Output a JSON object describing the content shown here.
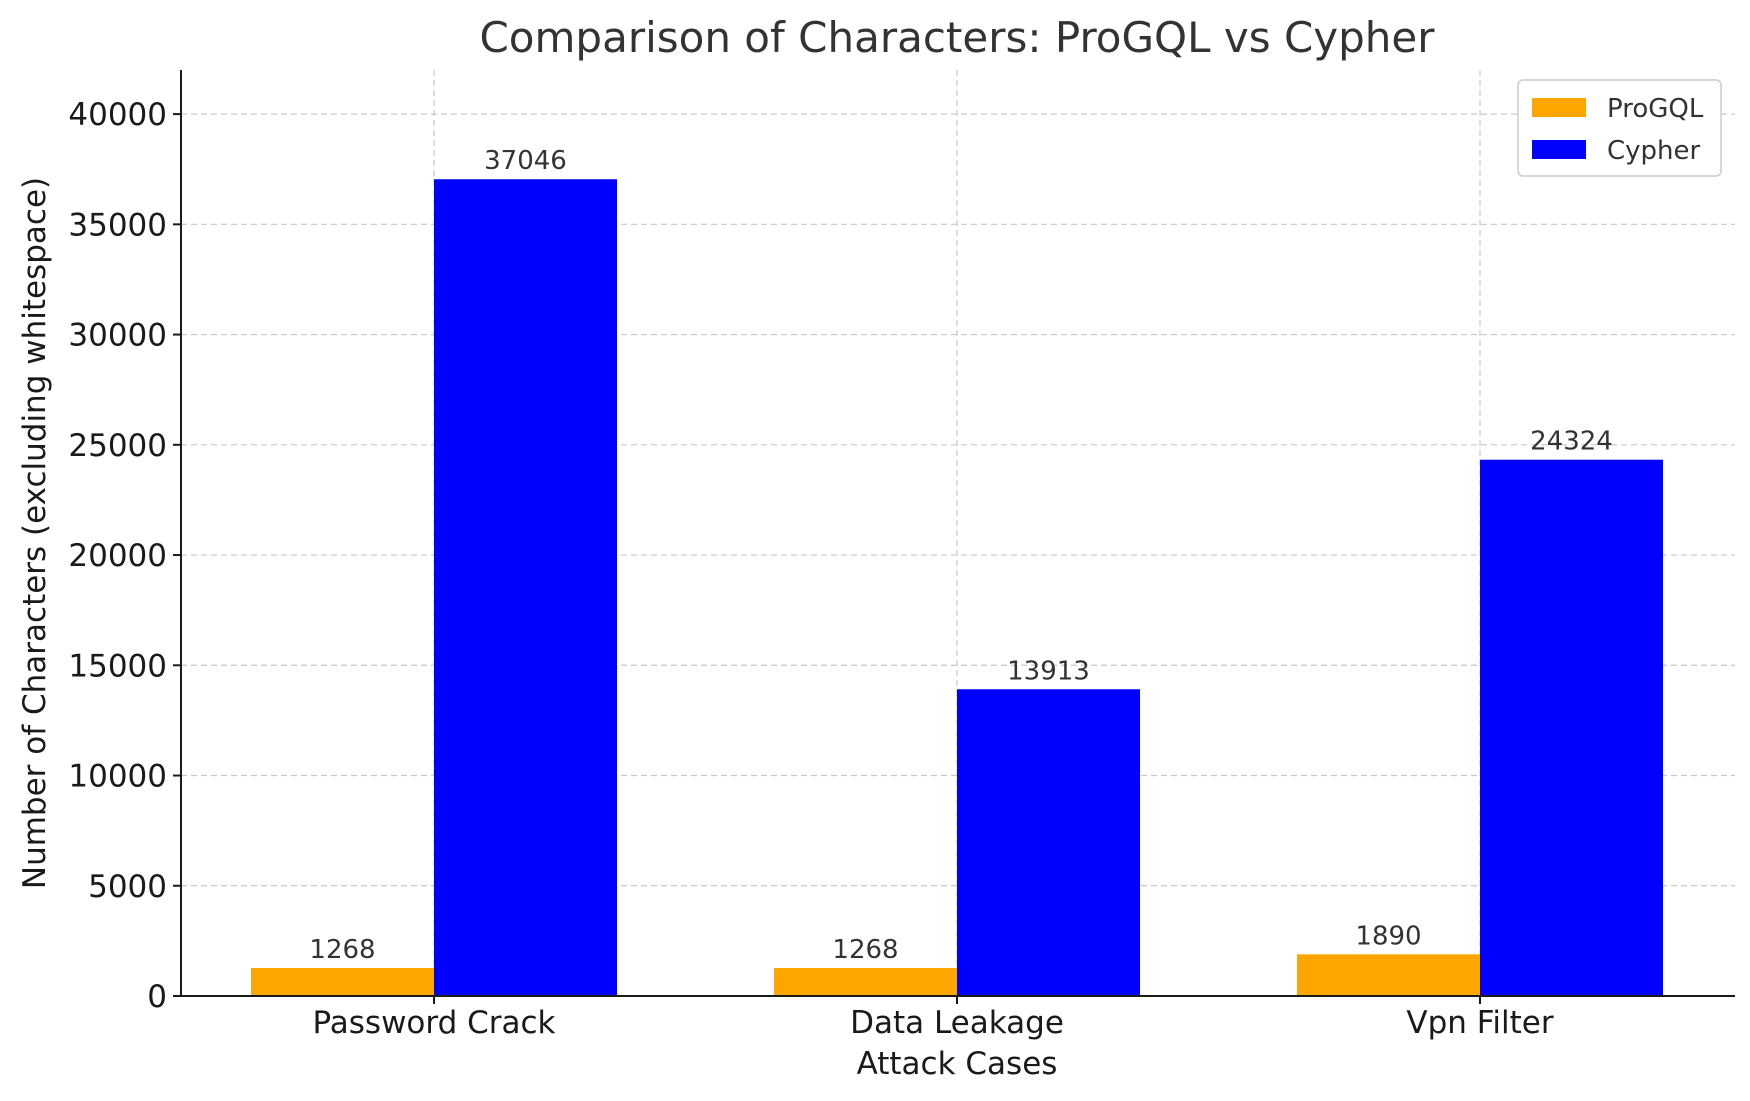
{
  "chart_data": {
    "type": "bar",
    "title": "Comparison of Characters: ProGQL vs Cypher",
    "xlabel": "Attack Cases",
    "ylabel": "Number of Characters (excluding whitespace)",
    "categories": [
      "Password Crack",
      "Data Leakage",
      "Vpn Filter"
    ],
    "series": [
      {
        "name": "ProGQL",
        "color": "#FFA500",
        "values": [
          1268,
          1268,
          1890
        ],
        "labels": [
          "1268",
          "1268",
          "1890"
        ]
      },
      {
        "name": "Cypher",
        "color": "#0000FF",
        "values": [
          37046,
          13913,
          24324
        ],
        "labels": [
          "37046",
          "13913",
          "24324"
        ]
      }
    ],
    "ylim": [
      0,
      42000
    ],
    "yticks": [
      0,
      5000,
      10000,
      15000,
      20000,
      25000,
      30000,
      35000,
      40000
    ],
    "ytick_labels": [
      "0",
      "5000",
      "10000",
      "15000",
      "20000",
      "25000",
      "30000",
      "35000",
      "40000"
    ],
    "grid": true,
    "legend_position": "top-right"
  }
}
